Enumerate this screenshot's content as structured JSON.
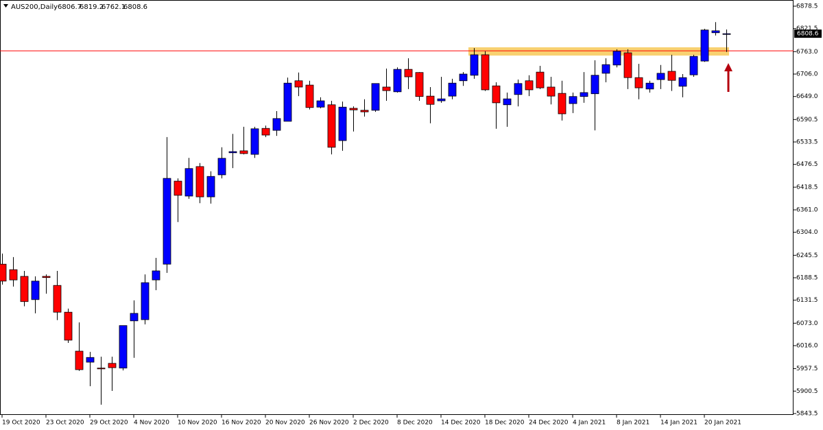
{
  "chart_data": {
    "type": "candlestick",
    "title": "AUS200,Daily",
    "categories": [
      "19 Oct 2020",
      null,
      null,
      null,
      "23 Oct 2020",
      null,
      null,
      null,
      "29 Oct 2020",
      null,
      null,
      null,
      "4 Nov 2020",
      null,
      null,
      null,
      "10 Nov 2020",
      null,
      null,
      null,
      "16 Nov 2020",
      null,
      null,
      null,
      "20 Nov 2020",
      null,
      null,
      null,
      "26 Nov 2020",
      null,
      null,
      null,
      "2 Dec 2020",
      null,
      null,
      null,
      "8 Dec 2020",
      null,
      null,
      null,
      "14 Dec 2020",
      null,
      null,
      null,
      "18 Dec 2020",
      null,
      null,
      null,
      "24 Dec 2020",
      null,
      null,
      null,
      "4 Jan 2021",
      null,
      null,
      null,
      "8 Jan 2021",
      null,
      null,
      null,
      "14 Jan 2021",
      null,
      null,
      null,
      "20 Jan 2021",
      null,
      null
    ],
    "open": [
      6223,
      6209,
      6192,
      6133,
      6192,
      6169,
      6101,
      6002,
      5974,
      5959,
      5971,
      5959,
      6079,
      6082,
      6183,
      6223,
      6434,
      6396,
      6471,
      6394,
      6450,
      6506,
      6511,
      6502,
      6568,
      6563,
      6586,
      6689,
      6678,
      6622,
      6628,
      6537,
      6619,
      6614,
      6614,
      6673,
      6661,
      6718,
      6710,
      6650,
      6638,
      6650,
      6689,
      6703,
      6755,
      6676,
      6628,
      6654,
      6689,
      6711,
      6673,
      6657,
      6631,
      6649,
      6656,
      6708,
      6729,
      6760,
      6697,
      6668,
      6692,
      6713,
      6675,
      6704,
      6739,
      6811,
      6806.7
    ],
    "high": [
      6250,
      6241,
      6206,
      6192,
      6197,
      6206,
      6110,
      6075,
      6000,
      5988,
      5988,
      6067,
      6131,
      6197,
      6239,
      6546,
      6441,
      6493,
      6480,
      6459,
      6520,
      6554,
      6572,
      6572,
      6575,
      6612,
      6697,
      6710,
      6689,
      6647,
      6638,
      6636,
      6624,
      6642,
      6682,
      6720,
      6723,
      6746,
      6711,
      6673,
      6699,
      6694,
      6711,
      6772,
      6764,
      6685,
      6659,
      6692,
      6703,
      6727,
      6699,
      6689,
      6659,
      6711,
      6741,
      6746,
      6769,
      6769,
      6732,
      6689,
      6729,
      6755,
      6706,
      6755,
      6821,
      6838,
      6819.2
    ],
    "low": [
      6171,
      6166,
      6116,
      6098,
      6148,
      6081,
      6023,
      5952,
      5913,
      5866,
      5901,
      5953,
      5985,
      6070,
      6157,
      6201,
      6330,
      6389,
      6378,
      6377,
      6441,
      6467,
      6502,
      6493,
      6546,
      6549,
      6586,
      6650,
      6616,
      6619,
      6502,
      6511,
      6560,
      6598,
      6610,
      6638,
      6659,
      6668,
      6638,
      6581,
      6633,
      6642,
      6676,
      6694,
      6663,
      6567,
      6572,
      6624,
      6650,
      6668,
      6629,
      6588,
      6607,
      6633,
      6563,
      6685,
      6723,
      6668,
      6642,
      6659,
      6668,
      6663,
      6647,
      6699,
      6737,
      6804,
      6762.1
    ],
    "close": [
      6180,
      6183,
      6128,
      6180,
      6189,
      6101,
      6030,
      5955,
      5986,
      5957,
      5960,
      6067,
      6098,
      6176,
      6206,
      6441,
      6398,
      6466,
      6394,
      6446,
      6492,
      6509,
      6504,
      6567,
      6551,
      6593,
      6683,
      6673,
      6621,
      6638,
      6520,
      6622,
      6615,
      6610,
      6682,
      6664,
      6718,
      6699,
      6649,
      6629,
      6643,
      6683,
      6706,
      6755,
      6666,
      6633,
      6643,
      6682,
      6666,
      6671,
      6650,
      6605,
      6649,
      6659,
      6703,
      6730,
      6764,
      6697,
      6671,
      6683,
      6708,
      6690,
      6697,
      6751,
      6818,
      6816,
      6808.6
    ],
    "up_color": "#0000ff",
    "down_color": "#ff0000",
    "ylim": [
      5840,
      6894.2
    ],
    "yticks": [
      6878.5,
      6821.5,
      {
        "value": 6763,
        "label": "6763.0"
      },
      {
        "value": 6706,
        "label": "6706.0"
      },
      {
        "value": 6649,
        "label": "6649.0"
      },
      6590.5,
      6533.5,
      6476.5,
      6418.5,
      {
        "value": 6361,
        "label": "6361.0"
      },
      {
        "value": 6304,
        "label": "6304.0"
      },
      6245.5,
      6188.5,
      6131.5,
      {
        "value": 6073,
        "label": "6073.0"
      },
      {
        "value": 6016,
        "label": "6016.0"
      },
      5957.5,
      5900.5,
      5843.5
    ],
    "hline": 6765,
    "hline_color": "#ff0000",
    "zone": [
      6753,
      6774
    ],
    "zone_color": "#f5c242"
  }
}
